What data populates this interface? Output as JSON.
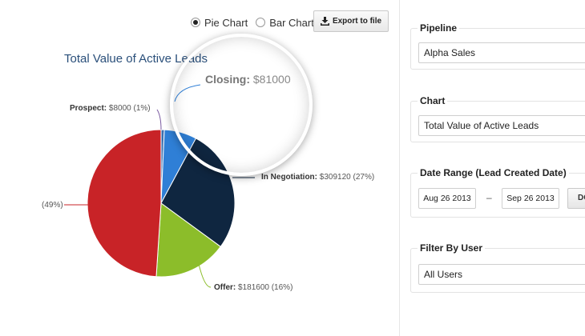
{
  "chart_toggle": {
    "pie_label": "Pie Chart",
    "bar_label": "Bar Chart",
    "selected": "Pie Chart",
    "export_label": "Export to file"
  },
  "chart_title": "Total Value of Active Leads",
  "magnifier_label": {
    "name": "Closing:",
    "value": "$81000"
  },
  "chart_data": {
    "type": "pie",
    "title": "Total Value of Active Leads",
    "slices": [
      {
        "name": "Prospect",
        "value": 8000,
        "percent_label": "(1%)",
        "value_label": "$8000",
        "color": "#3a6fb0"
      },
      {
        "name": "Closing",
        "value": 81000,
        "percent_label": "",
        "value_label": "$81000",
        "color": "#2f7fd6"
      },
      {
        "name": "In Negotiation",
        "value": 309120,
        "percent_label": "(27%)",
        "value_label": "$309120",
        "color": "#0f2640"
      },
      {
        "name": "Offer",
        "value": 181600,
        "percent_label": "(16%)",
        "value_label": "$181600",
        "color": "#8cbd2a"
      },
      {
        "name": "",
        "value": 556000,
        "percent_label": "(49%)",
        "value_label": "",
        "color": "#c82327"
      }
    ]
  },
  "labels": {
    "prospect_name": "Prospect:",
    "prospect_value": "$8000 (1%)",
    "negotiation_name": "In Negotiation:",
    "negotiation_value": "$309120 (27%)",
    "offer_name": "Offer:",
    "offer_value": "$181600 (16%)",
    "red_value": "(49%)"
  },
  "filters": {
    "pipeline": {
      "legend": "Pipeline",
      "value": "Alpha Sales"
    },
    "chart": {
      "legend": "Chart",
      "value": "Total Value of Active Leads"
    },
    "date_range": {
      "legend": "Date Range (Lead Created Date)",
      "from": "Aug 26 2013",
      "separator": "–",
      "to": "Sep 26 2013",
      "button": "DO"
    },
    "user": {
      "legend": "Filter By User",
      "value": "All Users"
    }
  },
  "colors": {
    "title": "#2a4f7a",
    "red": "#c82327",
    "navy": "#0f2640",
    "green": "#8cbd2a",
    "blue": "#2f7fd6"
  }
}
